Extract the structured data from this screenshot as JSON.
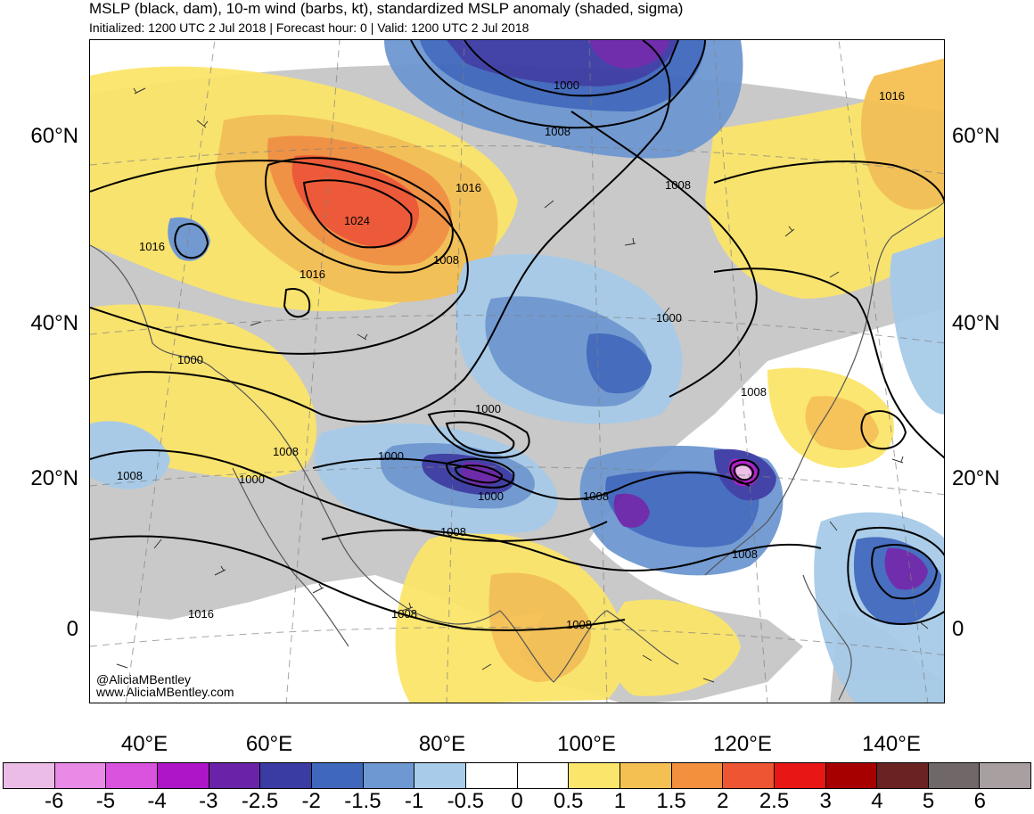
{
  "header": {
    "title": "MSLP (black, dam), 10-m wind (barbs, kt), standardized MSLP anomaly (shaded, sigma)",
    "subtitle": "Initialized: 1200 UTC 2 Jul 2018 | Forecast hour: 0 | Valid: 1200 UTC 2 Jul 2018"
  },
  "map": {
    "lat_labels": [
      "60°N",
      "40°N",
      "20°N",
      "0"
    ],
    "lon_labels": [
      "40°E",
      "60°E",
      "80°E",
      "100°E",
      "120°E",
      "140°E"
    ],
    "contour_labels": [
      "1000",
      "1008",
      "1016",
      "1008",
      "1016",
      "1024",
      "1016",
      "1008",
      "1016",
      "1000",
      "1008",
      "1000",
      "1000",
      "1000",
      "1008",
      "1000",
      "1008",
      "1000",
      "1008",
      "1008",
      "1008",
      "1016",
      "1008",
      "1008"
    ],
    "credit_handle": "@AliciaMBentley",
    "credit_url": "www.AliciaMBentley.com"
  },
  "colorbar": {
    "labels": [
      "-6",
      "-5",
      "-4",
      "-3",
      "-2.5",
      "-2",
      "-1.5",
      "-1",
      "-0.5",
      "0",
      "0.5",
      "1",
      "1.5",
      "2",
      "2.5",
      "3",
      "4",
      "5",
      "6"
    ],
    "colors": [
      "#ebbde6",
      "#e88ae6",
      "#d953de",
      "#ae15c8",
      "#6a23a8",
      "#3b3ba4",
      "#3f68bd",
      "#6e98d2",
      "#a7cbe8",
      "#ffffff",
      "#ffffff",
      "#fbe56a",
      "#f5c052",
      "#f2903e",
      "#ee5532",
      "#e81614",
      "#a70000",
      "#6b2222",
      "#706868",
      "#a8a0a0"
    ]
  }
}
